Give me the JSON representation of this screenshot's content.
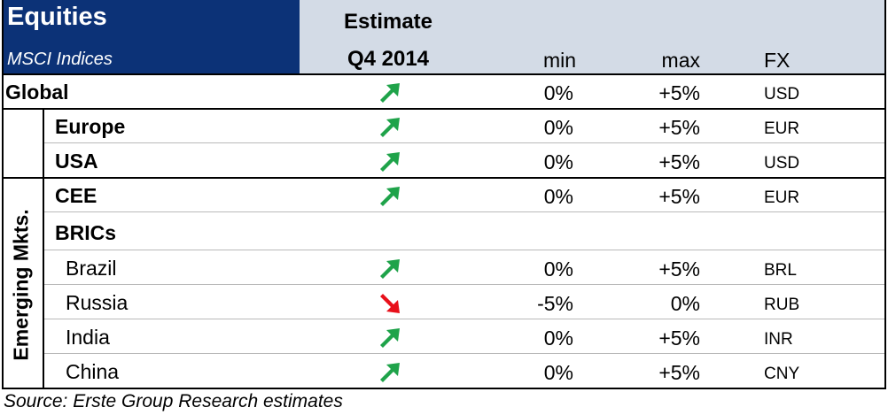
{
  "header": {
    "title": "Equities",
    "subtitle": "MSCI Indices",
    "estimate_label": "Estimate",
    "period_label": "Q4 2014",
    "min_label": "min",
    "max_label": "max",
    "fx_label": "FX"
  },
  "group_label": "Emerging Mkts.",
  "rows": [
    {
      "label": "Global",
      "arrow": "up-right-arrow-icon",
      "min": "0%",
      "max": "+5%",
      "fx": "USD"
    },
    {
      "label": "Europe",
      "arrow": "up-right-arrow-icon",
      "min": "0%",
      "max": "+5%",
      "fx": "EUR"
    },
    {
      "label": "USA",
      "arrow": "up-right-arrow-icon",
      "min": "0%",
      "max": "+5%",
      "fx": "USD"
    },
    {
      "label": "CEE",
      "arrow": "up-right-arrow-icon",
      "min": "0%",
      "max": "+5%",
      "fx": "EUR"
    },
    {
      "label": "BRICs"
    },
    {
      "label": "Brazil",
      "arrow": "up-right-arrow-icon",
      "min": "0%",
      "max": "+5%",
      "fx": "BRL"
    },
    {
      "label": "Russia",
      "arrow": "down-right-arrow-icon",
      "min": "-5%",
      "max": "0%",
      "fx": "RUB"
    },
    {
      "label": "India",
      "arrow": "up-right-arrow-icon",
      "min": "0%",
      "max": "+5%",
      "fx": "INR"
    },
    {
      "label": "China",
      "arrow": "up-right-arrow-icon",
      "min": "0%",
      "max": "+5%",
      "fx": "CNY"
    }
  ],
  "colors": {
    "header_blue": "#0c3277",
    "header_grey": "#d3dbe6",
    "arrow_up": "#1fa34a",
    "arrow_down": "#e8101a"
  },
  "source": "Source: Erste Group Research estimates"
}
